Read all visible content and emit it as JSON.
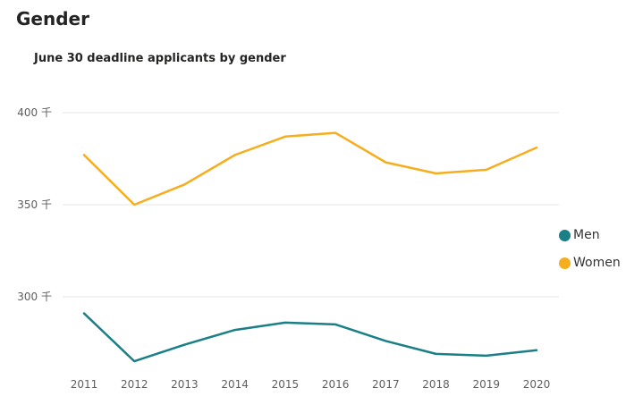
{
  "page": {
    "title": "Gender"
  },
  "chart_data": {
    "type": "line",
    "title": "June 30 deadline applicants by gender",
    "xlabel": "",
    "ylabel": "",
    "categories": [
      "2011",
      "2012",
      "2013",
      "2014",
      "2015",
      "2016",
      "2017",
      "2018",
      "2019",
      "2020"
    ],
    "series": [
      {
        "name": "Men",
        "color": "#1A7F86",
        "values": [
          291,
          265,
          274,
          282,
          286,
          285,
          276,
          269,
          268,
          271
        ]
      },
      {
        "name": "Women",
        "color": "#F5AE1E",
        "values": [
          377,
          350,
          361,
          377,
          387,
          389,
          373,
          367,
          369,
          381
        ]
      }
    ],
    "ylim": [
      265,
      400
    ],
    "yticks": [
      {
        "value": 300,
        "label": "300 千"
      },
      {
        "value": 350,
        "label": "350 千"
      },
      {
        "value": 400,
        "label": "400 千"
      }
    ],
    "grid": true,
    "legend_position": "right"
  }
}
